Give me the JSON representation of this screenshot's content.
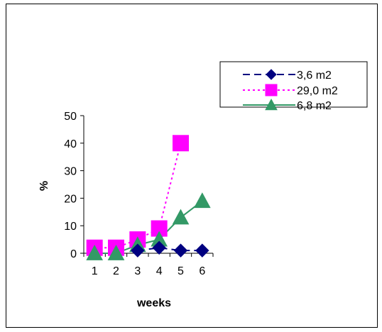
{
  "chart_data": {
    "type": "line",
    "xlabel": "weeks",
    "ylabel": "%",
    "categories": [
      "1",
      "2",
      "3",
      "4",
      "5",
      "6"
    ],
    "yticks": [
      "0",
      "10",
      "20",
      "30",
      "40",
      "50"
    ],
    "ylim": [
      0,
      50
    ],
    "grid": false,
    "legend_position": "top-right",
    "series": [
      {
        "name": "3,6 m2",
        "color": "#000080",
        "marker": "diamond",
        "line_style": "dashed",
        "values": [
          null,
          null,
          1,
          2,
          1,
          1
        ]
      },
      {
        "name": "29,0 m2",
        "color": "#ff00ff",
        "marker": "square",
        "line_style": "dotted",
        "values": [
          2,
          2,
          5,
          9,
          40,
          null
        ]
      },
      {
        "name": "6,8 m2",
        "color": "#339966",
        "marker": "triangle",
        "line_style": "solid",
        "values": [
          0,
          0,
          3,
          5,
          13,
          19
        ]
      }
    ]
  }
}
